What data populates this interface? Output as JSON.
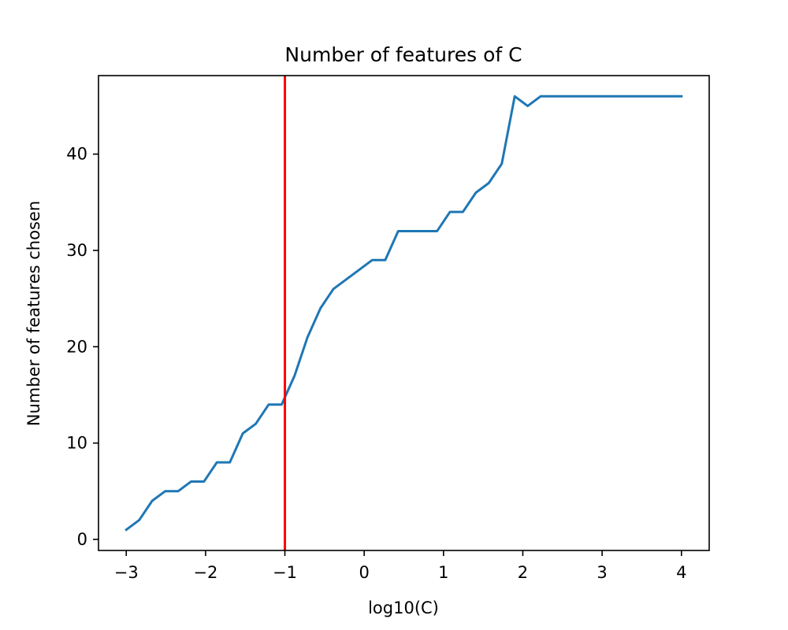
{
  "chart_data": {
    "type": "line",
    "title": "Number of features of C",
    "xlabel": "log10(C)",
    "ylabel": "Number of features chosen",
    "xlim": [
      -3.35,
      4.35
    ],
    "ylim": [
      -1.15,
      48.15
    ],
    "x_ticks": [
      -3,
      -2,
      -1,
      0,
      1,
      2,
      3,
      4
    ],
    "x_tick_labels": [
      "−3",
      "−2",
      "−1",
      "0",
      "1",
      "2",
      "3",
      "4"
    ],
    "y_ticks": [
      0,
      10,
      20,
      30,
      40
    ],
    "y_tick_labels": [
      "0",
      "10",
      "20",
      "30",
      "40"
    ],
    "grid": false,
    "series": [
      {
        "color": "#1f77b4",
        "x": [
          -3.0,
          -2.8367,
          -2.6735,
          -2.5102,
          -2.3469,
          -2.1837,
          -2.0204,
          -1.8571,
          -1.6939,
          -1.5306,
          -1.3673,
          -1.2041,
          -1.0408,
          -0.8776,
          -0.7143,
          -0.551,
          -0.3878,
          -0.2245,
          -0.0612,
          0.102,
          0.2653,
          0.4286,
          0.5918,
          0.7551,
          0.9184,
          1.0816,
          1.2449,
          1.4082,
          1.5714,
          1.7347,
          1.898,
          2.0612,
          2.2245,
          2.3878,
          2.551,
          2.7143,
          2.8776,
          3.0408,
          3.2041,
          3.3673,
          3.5306,
          3.6939,
          3.8571,
          4.0
        ],
        "y": [
          1,
          2,
          4,
          5,
          5,
          6,
          6,
          8,
          8,
          11,
          12,
          14,
          14,
          17,
          21,
          24,
          26,
          27,
          28,
          29,
          29,
          32,
          32,
          32,
          32,
          34,
          34,
          36,
          37,
          39,
          46,
          45,
          46,
          46,
          46,
          46,
          46,
          46,
          46,
          46,
          46,
          46,
          46,
          46
        ]
      }
    ],
    "reference_line": {
      "orientation": "vertical",
      "x": -1,
      "color": "#ff0000"
    }
  }
}
